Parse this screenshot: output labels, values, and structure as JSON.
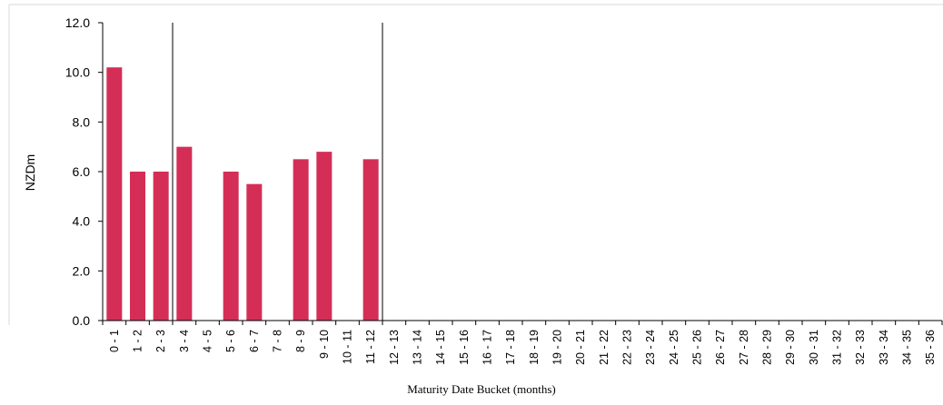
{
  "chart_data": {
    "type": "bar",
    "xlabel": "Maturity Date Bucket (months)",
    "ylabel": "NZDm",
    "ylim": [
      0,
      12
    ],
    "yticks": [
      "0.0",
      "2.0",
      "4.0",
      "6.0",
      "8.0",
      "10.0",
      "12.0"
    ],
    "grid": false,
    "bar_color": "#d42e57",
    "categories": [
      "0 - 1",
      "1 - 2",
      "2 - 3",
      "3 - 4",
      "4 - 5",
      "5 - 6",
      "6 - 7",
      "7 - 8",
      "8 - 9",
      "9 - 10",
      "10 - 11",
      "11 - 12",
      "12 - 13",
      "13 - 14",
      "14 - 15",
      "15 - 16",
      "16 - 17",
      "17 - 18",
      "18 - 19",
      "19 - 20",
      "20 - 21",
      "21 - 22",
      "22 - 23",
      "23 - 24",
      "24 - 25",
      "25 - 26",
      "26 - 27",
      "27 - 28",
      "28 - 29",
      "29 - 30",
      "30 - 31",
      "31 - 32",
      "32 - 33",
      "33 - 34",
      "34 - 35",
      "35 - 36"
    ],
    "values": [
      10.2,
      6.0,
      6.0,
      7.0,
      0,
      6.0,
      5.5,
      0,
      6.5,
      6.8,
      0,
      6.5,
      0,
      0,
      0,
      0,
      0,
      0,
      0,
      0,
      0,
      0,
      0,
      0,
      0,
      0,
      0,
      0,
      0,
      0,
      0,
      0,
      0,
      0,
      0,
      0
    ],
    "reference_lines_after_category": [
      "2 - 3",
      "11 - 12"
    ]
  }
}
